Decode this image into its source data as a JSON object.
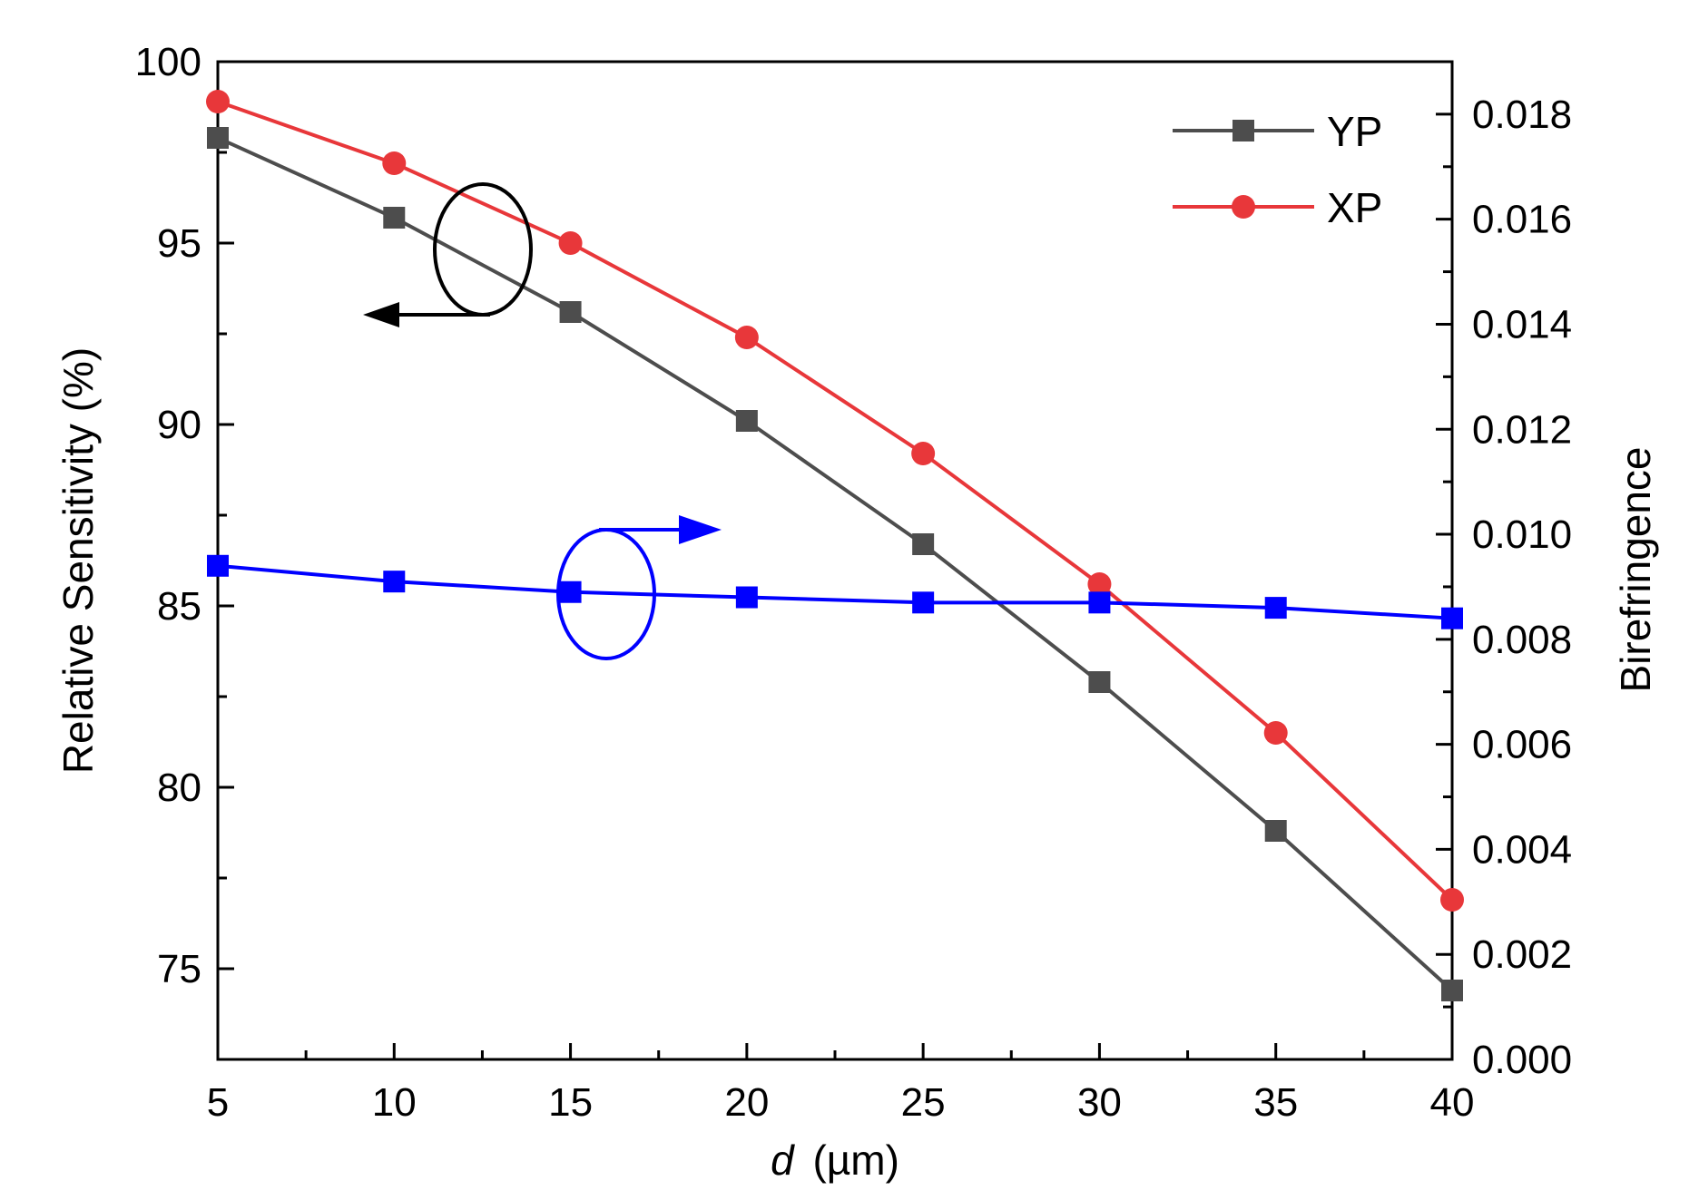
{
  "chart_data": {
    "type": "line",
    "x": [
      5,
      10,
      15,
      20,
      25,
      30,
      35,
      40
    ],
    "xlim": [
      5,
      40
    ],
    "xticks": [
      5,
      10,
      15,
      20,
      25,
      30,
      35,
      40
    ],
    "xlabel_italic": "d",
    "xlabel_unit": "(µm)",
    "ylabel": "Relative Sensitivity (%)",
    "ylim": [
      72.5,
      100
    ],
    "yticks": [
      75,
      80,
      85,
      90,
      95,
      100
    ],
    "y2label": "Birefringence",
    "y2lim": [
      0,
      0.019
    ],
    "y2ticks": [
      "0.000",
      "0.002",
      "0.004",
      "0.006",
      "0.008",
      "0.010",
      "0.012",
      "0.014",
      "0.016",
      "0.018"
    ],
    "series": [
      {
        "name": "YP",
        "axis": "left",
        "marker": "square",
        "color": "#4d4d4d",
        "values": [
          97.9,
          95.7,
          93.1,
          90.1,
          86.7,
          82.9,
          78.8,
          74.4
        ]
      },
      {
        "name": "XP",
        "axis": "left",
        "marker": "circle",
        "color": "#e8373a",
        "values": [
          98.9,
          97.2,
          95.0,
          92.4,
          89.2,
          85.6,
          81.5,
          76.9
        ]
      },
      {
        "name": "Birefringence",
        "axis": "right",
        "marker": "square",
        "color": "#0000ff",
        "legend": false,
        "values": [
          0.0094,
          0.0091,
          0.0089,
          0.0088,
          0.0087,
          0.0087,
          0.0086,
          0.0084
        ]
      }
    ],
    "legend_position": "top-right",
    "annotations": [
      {
        "type": "ellipse-arrow",
        "color": "#000000",
        "points_to": "left-axis"
      },
      {
        "type": "ellipse-arrow",
        "color": "#0000ff",
        "points_to": "right-axis"
      }
    ]
  }
}
